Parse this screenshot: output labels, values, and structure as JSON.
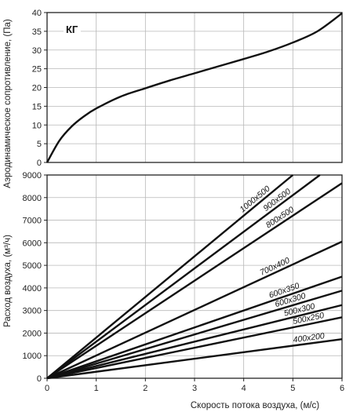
{
  "chart_data": [
    {
      "type": "line",
      "panel_label": "КГ",
      "ylabel": "Аэродинамическое сопротивление, (Па)",
      "xlim": [
        0,
        6
      ],
      "ylim": [
        0,
        40
      ],
      "yticks": [
        "0",
        "5",
        "10",
        "15",
        "20",
        "25",
        "30",
        "35",
        "40"
      ],
      "grid": true,
      "series": [
        {
          "x": [
            0,
            0.25,
            0.5,
            0.75,
            1,
            1.5,
            2,
            2.5,
            3,
            3.5,
            4,
            4.5,
            5,
            5.5,
            6
          ],
          "values": [
            0,
            5.8,
            9.6,
            12.3,
            14.4,
            17.6,
            19.8,
            21.9,
            23.8,
            25.7,
            27.6,
            29.6,
            32,
            35,
            39.8
          ]
        }
      ]
    },
    {
      "type": "line",
      "ylabel": "Расход воздуха, (м³/ч)",
      "xlabel": "Скорость потока воздуха, (м/с)",
      "xlim": [
        0,
        6
      ],
      "ylim": [
        0,
        9000
      ],
      "xticks": [
        "0",
        "1",
        "2",
        "3",
        "4",
        "5",
        "6"
      ],
      "yticks": [
        "0",
        "1000",
        "2000",
        "3000",
        "4000",
        "5000",
        "6000",
        "7000",
        "8000",
        "9000"
      ],
      "grid": true,
      "series": [
        {
          "name": "1000x500",
          "x": [
            0,
            5
          ],
          "values": [
            0,
            9000
          ]
        },
        {
          "name": "900x500",
          "x": [
            0,
            5.55
          ],
          "values": [
            0,
            9000
          ]
        },
        {
          "name": "800x500",
          "x": [
            0,
            6
          ],
          "values": [
            0,
            8640
          ]
        },
        {
          "name": "700x400",
          "x": [
            0,
            6
          ],
          "values": [
            0,
            6050
          ]
        },
        {
          "name": "600x350",
          "x": [
            0,
            6
          ],
          "values": [
            0,
            4500
          ]
        },
        {
          "name": "600x300",
          "x": [
            0,
            6
          ],
          "values": [
            0,
            3880
          ]
        },
        {
          "name": "500x300",
          "x": [
            0,
            6
          ],
          "values": [
            0,
            3240
          ]
        },
        {
          "name": "500x250",
          "x": [
            0,
            6
          ],
          "values": [
            0,
            2700
          ]
        },
        {
          "name": "400x200",
          "x": [
            0,
            6
          ],
          "values": [
            0,
            1730
          ]
        }
      ]
    }
  ]
}
